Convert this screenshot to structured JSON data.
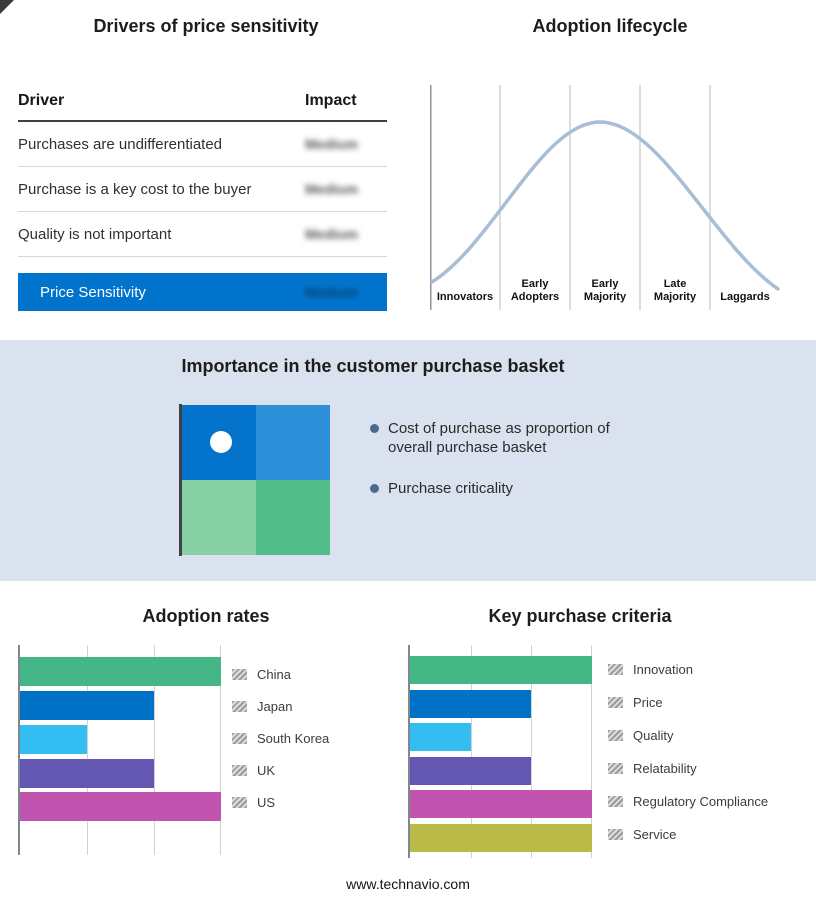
{
  "chart_data": [
    {
      "id": "adoption-lifecycle",
      "type": "line",
      "subtype": "bell-curve",
      "title": "Adoption lifecycle",
      "categories": [
        "Innovators",
        "Early Adopters",
        "Early Majority",
        "Late Majority",
        "Laggards"
      ],
      "relative_heights": [
        0.12,
        0.55,
        1.0,
        0.5,
        0.12
      ],
      "axis_labels": "none",
      "curve_color": "#a9bdd6"
    },
    {
      "id": "adoption-rates",
      "type": "bar",
      "orientation": "horizontal",
      "title": "Adoption rates",
      "categories": [
        "China",
        "Japan",
        "South Korea",
        "UK",
        "US"
      ],
      "values": [
        3,
        2,
        1,
        2,
        3
      ],
      "xmax": 3,
      "x_axis": "relative scale, gridlines at 1, 2, 3; no numeric labels",
      "colors": [
        "#45b787",
        "#0072c6",
        "#33bdf0",
        "#6457b2",
        "#c054ae"
      ],
      "legend_position": "right"
    },
    {
      "id": "key-purchase-criteria",
      "type": "bar",
      "orientation": "horizontal",
      "title": "Key purchase criteria",
      "categories": [
        "Innovation",
        "Price",
        "Quality",
        "Relatability",
        "Regulatory Compliance",
        "Service"
      ],
      "values": [
        3,
        2,
        1,
        2,
        3,
        3
      ],
      "xmax": 3,
      "x_axis": "relative scale, gridlines at 1, 2, 3; no numeric labels",
      "colors": [
        "#45b787",
        "#0072c6",
        "#33bdf0",
        "#6457b2",
        "#c054ae",
        "#b9ba47"
      ],
      "legend_position": "right"
    },
    {
      "id": "price-sensitivity-drivers",
      "type": "table",
      "title": "Drivers of price sensitivity",
      "columns": [
        "Driver",
        "Impact"
      ],
      "rows": [
        [
          "Purchases are undifferentiated",
          "Medium"
        ],
        [
          "Purchase is a key cost to the buyer",
          "Medium"
        ],
        [
          "Quality is not important",
          "Medium"
        ]
      ],
      "summary_row": [
        "Price Sensitivity",
        "Medium"
      ],
      "impact_text_blurred": true,
      "highlight_color": "#0074cc"
    }
  ],
  "basket_panel": {
    "title": "Importance in the customer purchase basket",
    "bullets": [
      "Cost of purchase as proportion of overall purchase basket",
      "Purchase criticality"
    ],
    "quadrant_colors": [
      "#0473cb",
      "#2e8fd9",
      "#87cfa5",
      "#52bd8b"
    ],
    "band_color": "#d9e2ee",
    "marker": "white-dot-top-left"
  },
  "footer": {
    "url": "www.technavio.com"
  }
}
